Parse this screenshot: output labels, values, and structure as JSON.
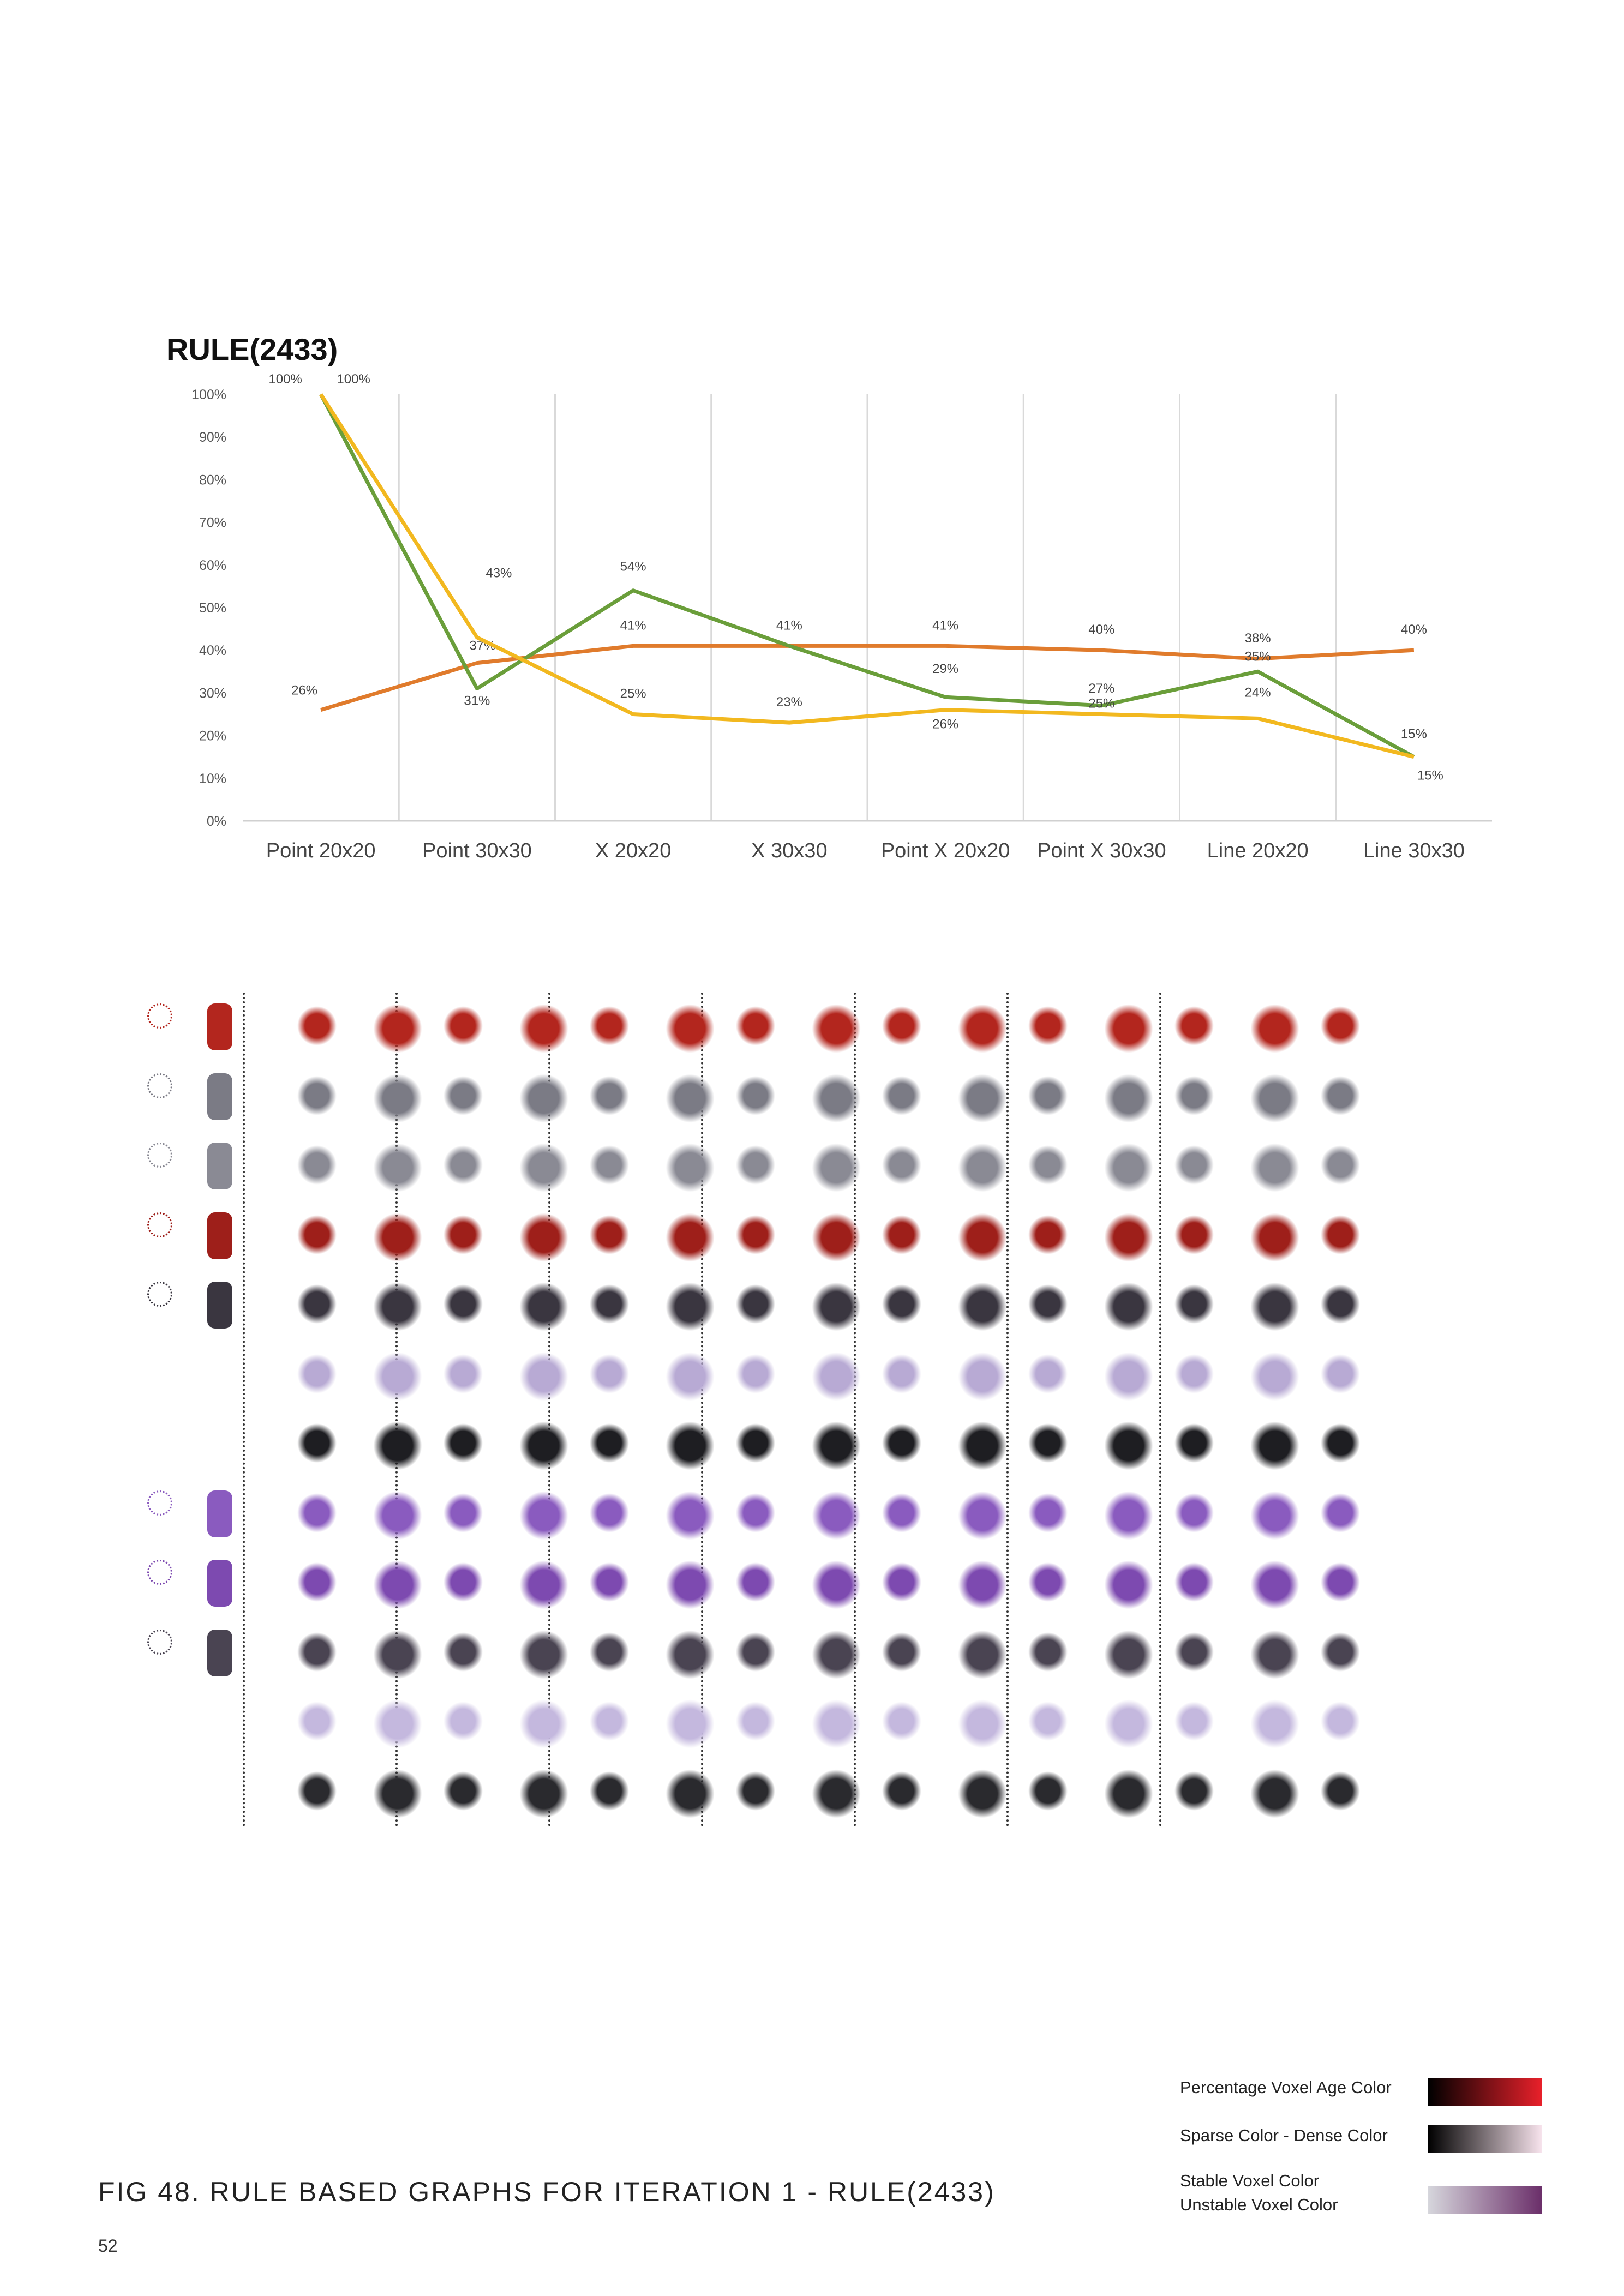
{
  "chart_data": {
    "type": "line",
    "title": "RULE(2433)",
    "categories": [
      "Point 20x20",
      "Point 30x30",
      "X 20x20",
      "X 30x30",
      "Point X 20x20",
      "Point X 30x30",
      "Line 20x20",
      "Line 30x30"
    ],
    "series": [
      {
        "color": "#e07b2c",
        "values": [
          26,
          37,
          41,
          41,
          41,
          40,
          38,
          40
        ],
        "labels": [
          "26%",
          "37%",
          "41%",
          "41%",
          "41%",
          "40%",
          "38%",
          "40%"
        ]
      },
      {
        "color": "#6a9e3a",
        "values": [
          100,
          31,
          54,
          41,
          29,
          27,
          35,
          15
        ],
        "labels": [
          "100%",
          "31%",
          "54%",
          "",
          "29%",
          "27%",
          "35%",
          "15%"
        ]
      },
      {
        "color": "#f2b81f",
        "values": [
          100,
          43,
          25,
          23,
          26,
          25,
          24,
          15
        ],
        "labels": [
          "100%",
          "43%",
          "25%",
          "23%",
          "26%",
          "25%",
          "24%",
          "15%"
        ]
      }
    ],
    "yticks": [
      "0%",
      "10%",
      "20%",
      "30%",
      "40%",
      "50%",
      "60%",
      "70%",
      "80%",
      "90%",
      "100%"
    ],
    "ylim": [
      0,
      100
    ],
    "grid": "vertical category separators",
    "legend": "none"
  },
  "thumbnail_grid": {
    "columns": 17,
    "rows": 12,
    "row_colors": [
      "#b3261e",
      "#7b7b85",
      "#8a8a94",
      "#9e1f1a",
      "#3a3640",
      "#b8aad4",
      "#1e1e22",
      "#8a5bbf",
      "#7d4ab0",
      "#4a4452",
      "#c4b8de",
      "#2a2a2e"
    ]
  },
  "legend": {
    "items": [
      {
        "label": "Percentage Voxel Age Color",
        "gradient": [
          "#000000",
          "#e8202a"
        ]
      },
      {
        "label": "Sparse Color - Dense Color",
        "gradient": [
          "#000000",
          "#f7e3ec"
        ]
      },
      {
        "label": "Stable Voxel Color\nUnstable Voxel Color",
        "label_line1": "Stable Voxel Color",
        "label_line2": "Unstable Voxel Color",
        "gradient": [
          "#d6d6dc",
          "#6b2f6a"
        ]
      }
    ]
  },
  "caption": "FIG 48. RULE BASED GRAPHS FOR ITERATION 1 - RULE(2433)",
  "page_number": "52"
}
